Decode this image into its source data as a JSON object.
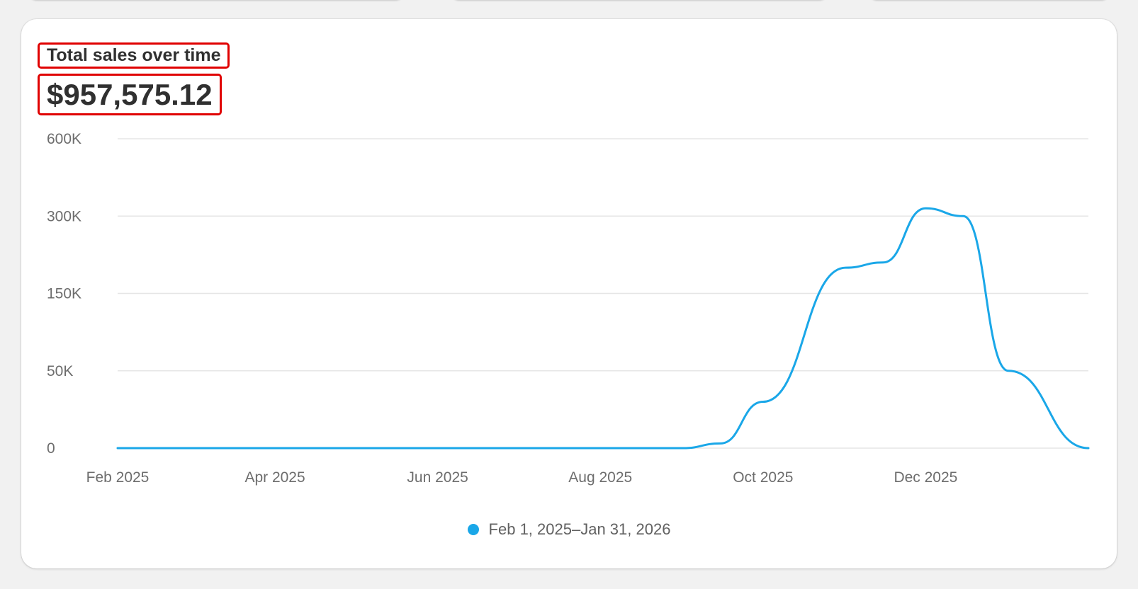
{
  "card": {
    "title": "Total sales over time",
    "total": "$957,575.12"
  },
  "legend": {
    "label": "Feb 1, 2025–Jan 31, 2026"
  },
  "colors": {
    "series": "#1aa7e8",
    "grid": "#e6e6e6",
    "axis_text": "#6d6d6d"
  },
  "chart_data": {
    "type": "line",
    "title": "Total sales over time",
    "y_ticks": [
      "0",
      "50K",
      "150K",
      "300K",
      "600K"
    ],
    "x_ticks": [
      "Feb 2025",
      "Apr 2025",
      "Jun 2025",
      "Aug 2025",
      "Oct 2025",
      "Dec 2025"
    ],
    "y_scale": "categorical-ticks (non-linear)",
    "grid": true,
    "legend_position": "bottom-center",
    "series": [
      {
        "name": "Feb 1, 2025–Jan 31, 2026",
        "x": [
          "2025-02-01",
          "2025-09-01",
          "2025-09-15",
          "2025-10-01",
          "2025-11-01",
          "2025-11-15",
          "2025-12-01",
          "2025-12-15",
          "2026-01-01",
          "2026-01-31"
        ],
        "values": [
          0,
          0,
          3000,
          30000,
          200000,
          210000,
          330000,
          300000,
          50000,
          0
        ]
      }
    ]
  }
}
